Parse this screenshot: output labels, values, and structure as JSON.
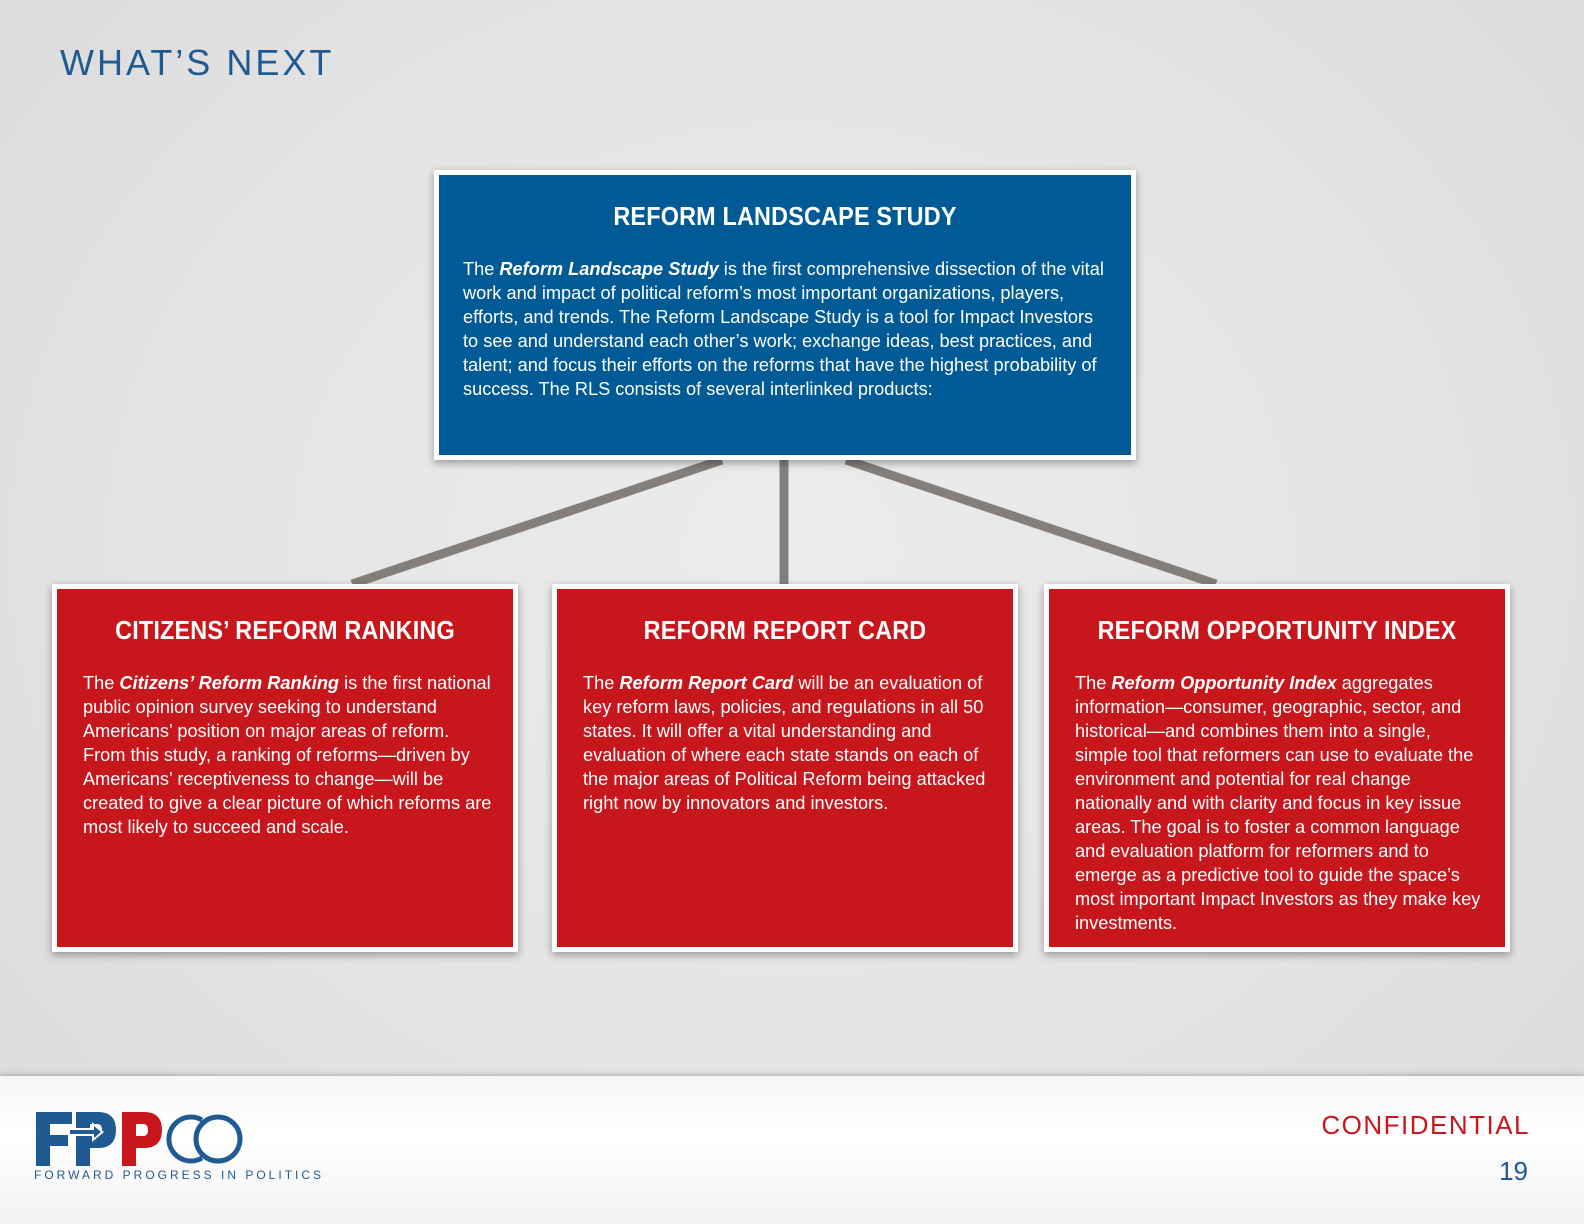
{
  "header": {
    "title": "WHAT’S NEXT"
  },
  "main_box": {
    "title": "REFORM LANDSCAPE STUDY",
    "lead": "The ",
    "emphasis": "Reform Landscape Study",
    "body": " is the first comprehensive dissection of the vital work and impact of political reform’s most important organizations, players, efforts, and trends. The Reform Landscape Study is a tool for Impact Investors to see and understand each other’s work; exchange ideas, best practices, and talent; and focus their efforts on the reforms that have the highest probability of success. The RLS consists of several interlinked products:"
  },
  "products": [
    {
      "title": "CITIZENS’ REFORM RANKING",
      "lead": "The ",
      "emphasis": "Citizens’ Reform Ranking",
      "body": " is the first national public opinion survey seeking to understand Americans’ position on major areas of reform. From this study, a ranking of reforms—driven by Americans’ receptiveness to change—will be created to give a clear picture of which reforms are most likely to succeed and scale."
    },
    {
      "title": "REFORM REPORT CARD",
      "lead": "The ",
      "emphasis": "Reform Report Card",
      "body": " will be an evaluation of key reform laws, policies, and regulations in all 50 states. It will offer a vital understanding and evaluation of where each state stands on each of the major areas of Political Reform being attacked right now by innovators and investors."
    },
    {
      "title": "REFORM OPPORTUNITY INDEX",
      "lead": "The ",
      "emphasis": "Reform Opportunity Index",
      "body": " aggregates information—consumer, geographic, sector, and historical—and combines them into a single, simple tool that reformers can use to evaluate the environment and potential for real change nationally and with clarity and focus in key issue areas.  The goal is to foster a common language and evaluation platform for reformers and to emerge as a predictive tool to guide the space’s most important Impact Investors as they make key investments."
    }
  ],
  "footer": {
    "logo": "FPPCO",
    "tagline": "FORWARD PROGRESS IN POLITICS",
    "confidential": "CONFIDENTIAL",
    "page_number": "19"
  },
  "colors": {
    "blue": "#005a95",
    "red": "#c8161d",
    "connector": "#857e7b",
    "title_blue": "#1f5a92"
  }
}
